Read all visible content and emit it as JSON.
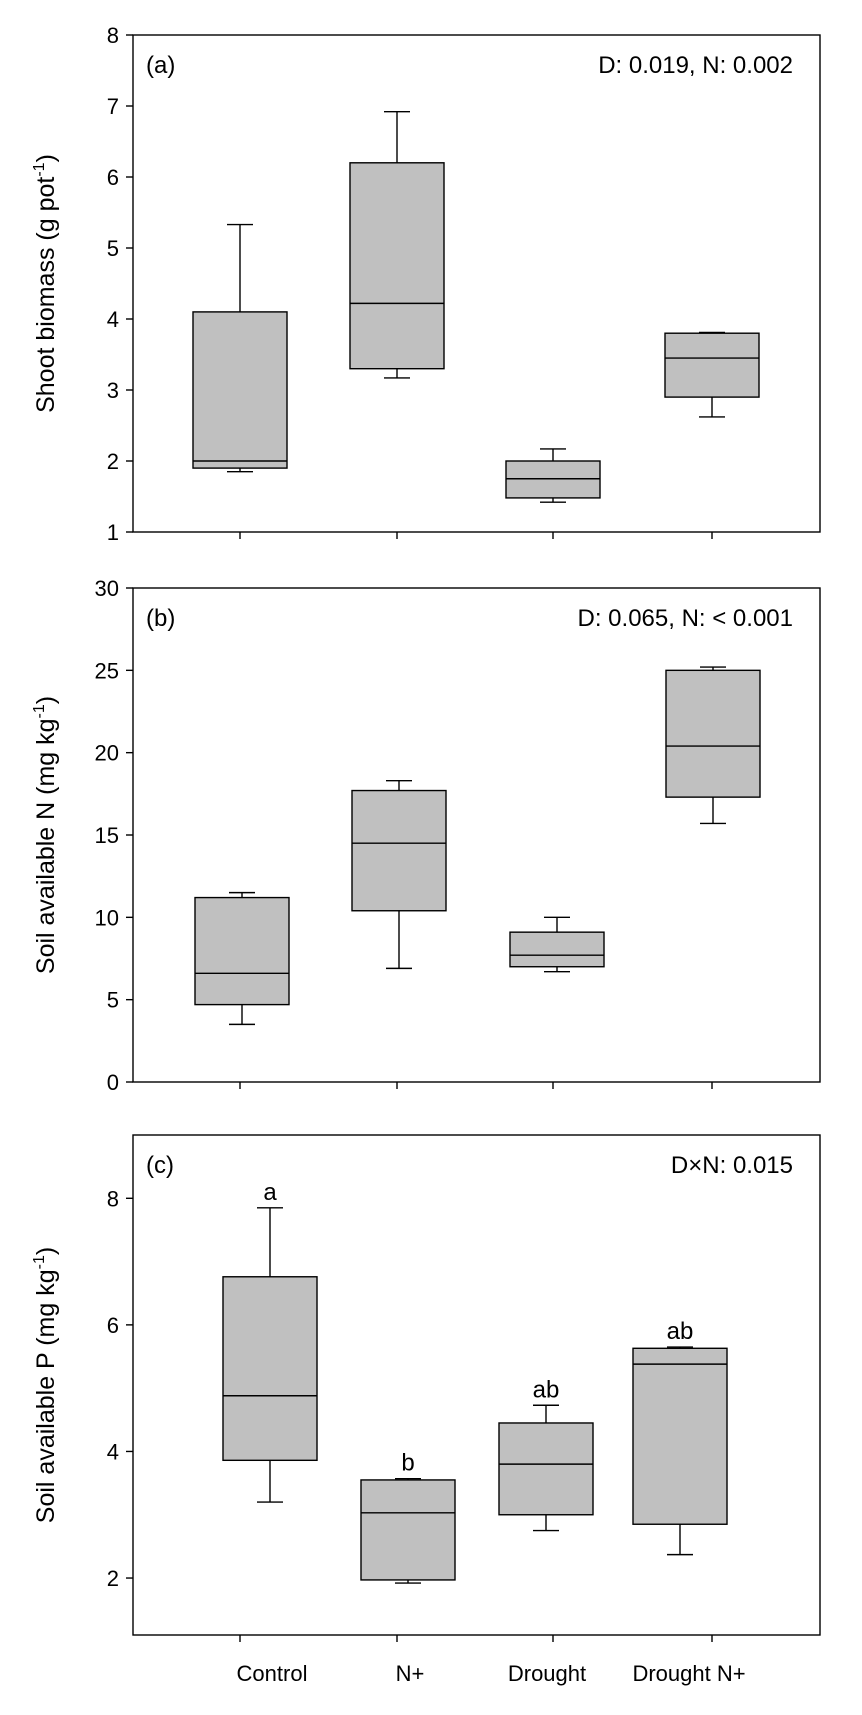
{
  "chart_data": [
    {
      "type": "box",
      "panel_label": "(a)",
      "annotation": "D: 0.019, N: 0.002",
      "ylabel": "Shoot biomass (g pot",
      "ylabel_sup": "-1",
      "ylabel_end": ")",
      "ylim": [
        1,
        8
      ],
      "yticks": [
        "1",
        "2",
        "3",
        "4",
        "5",
        "6",
        "7",
        "8"
      ],
      "categories": [
        "Control",
        "N+",
        "Drought",
        "Drought N+"
      ],
      "boxes": [
        {
          "min": 1.85,
          "q1": 1.9,
          "median": 2.0,
          "q3": 4.1,
          "max": 5.33
        },
        {
          "min": 3.17,
          "q1": 3.3,
          "median": 4.22,
          "q3": 6.2,
          "max": 6.92
        },
        {
          "min": 1.42,
          "q1": 1.48,
          "median": 1.75,
          "q3": 2.0,
          "max": 2.17
        },
        {
          "min": 2.62,
          "q1": 2.9,
          "median": 3.45,
          "q3": 3.8,
          "max": 3.81
        }
      ],
      "letters": []
    },
    {
      "type": "box",
      "panel_label": "(b)",
      "annotation": "D: 0.065, N: < 0.001",
      "ylabel": "Soil available N (mg kg",
      "ylabel_sup": "-1",
      "ylabel_end": ")",
      "ylim": [
        0,
        30
      ],
      "yticks": [
        "0",
        "5",
        "10",
        "15",
        "20",
        "25",
        "30"
      ],
      "categories": [
        "Control",
        "N+",
        "Drought",
        "Drought N+"
      ],
      "boxes": [
        {
          "min": 3.5,
          "q1": 4.7,
          "median": 6.6,
          "q3": 11.2,
          "max": 11.5
        },
        {
          "min": 6.9,
          "q1": 10.4,
          "median": 14.5,
          "q3": 17.7,
          "max": 18.3
        },
        {
          "min": 6.7,
          "q1": 7.0,
          "median": 7.7,
          "q3": 9.1,
          "max": 10.0
        },
        {
          "min": 15.7,
          "q1": 17.3,
          "median": 20.4,
          "q3": 25.0,
          "max": 25.2
        }
      ],
      "letters": []
    },
    {
      "type": "box",
      "panel_label": "(c)",
      "annotation": "D×N:  0.015",
      "ylabel": "Soil available P (mg kg",
      "ylabel_sup": "-1",
      "ylabel_end": ")",
      "ylim": [
        1.1,
        9.0
      ],
      "yticks": [
        "2",
        "4",
        "6",
        "8"
      ],
      "categories": [
        "Control",
        "N+",
        "Drought",
        "Drought N+"
      ],
      "boxes": [
        {
          "min": 3.2,
          "q1": 3.86,
          "median": 4.88,
          "q3": 6.76,
          "max": 7.85
        },
        {
          "min": 1.92,
          "q1": 1.97,
          "median": 3.03,
          "q3": 3.55,
          "max": 3.57
        },
        {
          "min": 2.75,
          "q1": 3.0,
          "median": 3.8,
          "q3": 4.45,
          "max": 4.73
        },
        {
          "min": 2.37,
          "q1": 2.85,
          "median": 5.38,
          "q3": 5.63,
          "max": 5.65
        }
      ],
      "letters": [
        "a",
        "b",
        "ab",
        "ab"
      ]
    }
  ],
  "colors": {
    "box_fill": "#c0c0c0",
    "stroke": "#000000",
    "background": "#ffffff"
  }
}
